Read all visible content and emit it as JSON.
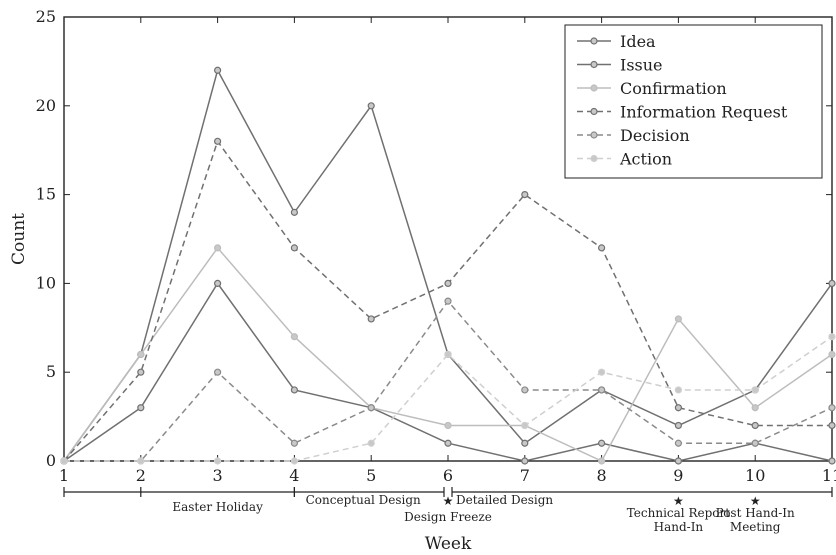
{
  "chart_data": {
    "type": "line",
    "xlabel": "Week",
    "ylabel": "Count",
    "xlim": [
      1,
      11
    ],
    "ylim": [
      0,
      25
    ],
    "x_ticks": [
      1,
      2,
      3,
      4,
      5,
      6,
      7,
      8,
      9,
      10,
      11
    ],
    "y_ticks": [
      0,
      5,
      10,
      15,
      20,
      25
    ],
    "grid": false,
    "legend_position": "top-right",
    "x": [
      1,
      2,
      3,
      4,
      5,
      6,
      7,
      8,
      9,
      10,
      11
    ],
    "series": [
      {
        "name": "Idea",
        "values": [
          0,
          6,
          22,
          14,
          20,
          6,
          1,
          4,
          2,
          4,
          10
        ],
        "color": "#707070",
        "dash": "solid"
      },
      {
        "name": "Issue",
        "values": [
          0,
          3,
          10,
          4,
          3,
          1,
          0,
          1,
          0,
          1,
          0
        ],
        "color": "#707070",
        "dash": "solid"
      },
      {
        "name": "Confirmation",
        "values": [
          0,
          6,
          12,
          7,
          3,
          2,
          2,
          0,
          8,
          3,
          6
        ],
        "color": "#bdbdbd",
        "dash": "solid"
      },
      {
        "name": "Information Request",
        "values": [
          0,
          5,
          18,
          12,
          8,
          10,
          15,
          12,
          3,
          2,
          2
        ],
        "color": "#707070",
        "dash": "dashed"
      },
      {
        "name": "Decision",
        "values": [
          0,
          0,
          5,
          1,
          3,
          9,
          4,
          4,
          1,
          1,
          3
        ],
        "color": "#8a8a8a",
        "dash": "dashed"
      },
      {
        "name": "Action",
        "values": [
          0,
          0,
          0,
          0,
          1,
          6,
          2,
          5,
          4,
          4,
          7
        ],
        "color": "#cfcfcf",
        "dash": "dashed"
      }
    ],
    "annotations": {
      "periods": [
        {
          "label": "Easter Holiday",
          "start": 2,
          "end": 4
        },
        {
          "label": "Conceptual Design",
          "start": 4,
          "end": 6
        },
        {
          "label": "Detailed Design",
          "start": 6,
          "end": 11
        }
      ],
      "milestones": [
        {
          "x": 6,
          "lines": [
            "Design Freeze"
          ]
        },
        {
          "x": 9,
          "lines": [
            "Technical Report",
            "Hand-In"
          ]
        },
        {
          "x": 10,
          "lines": [
            "Post Hand-In",
            "Meeting"
          ]
        }
      ]
    }
  }
}
